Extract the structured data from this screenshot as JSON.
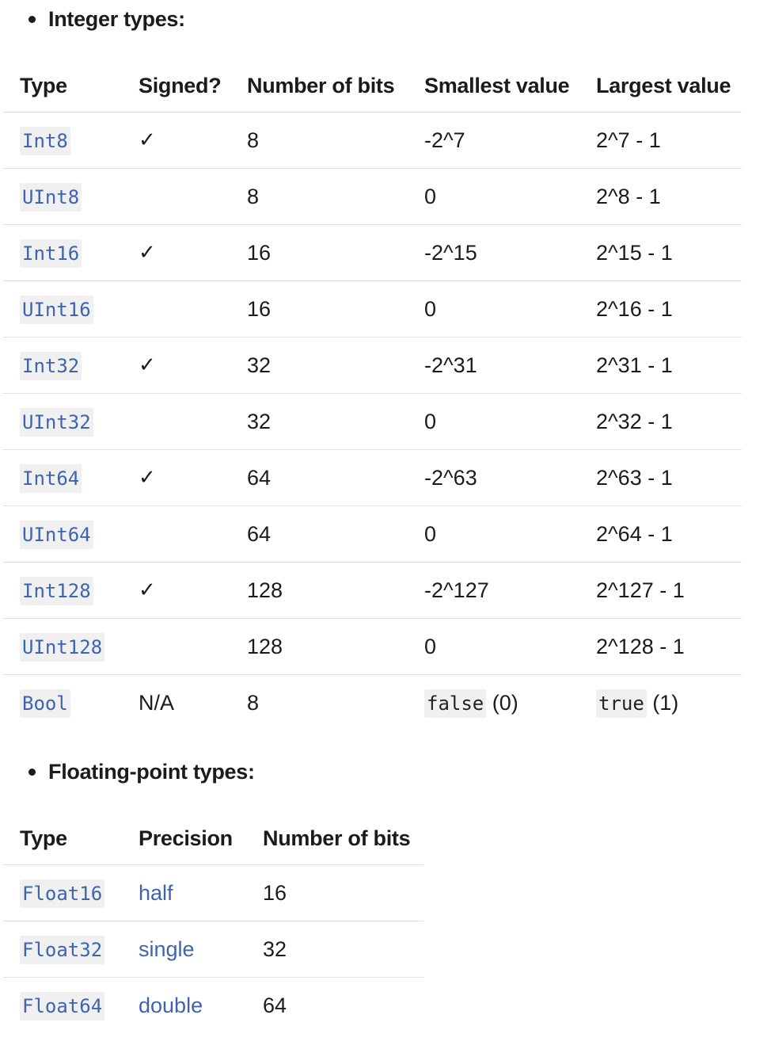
{
  "integer_section": {
    "heading": "Integer types:",
    "headers": [
      "Type",
      "Signed?",
      "Number of bits",
      "Smallest value",
      "Largest value"
    ],
    "rows": [
      {
        "type": "Int8",
        "signed": "✓",
        "bits": "8",
        "smallest": "-2^7",
        "largest": "2^7 - 1"
      },
      {
        "type": "UInt8",
        "signed": "",
        "bits": "8",
        "smallest": "0",
        "largest": "2^8 - 1"
      },
      {
        "type": "Int16",
        "signed": "✓",
        "bits": "16",
        "smallest": "-2^15",
        "largest": "2^15 - 1"
      },
      {
        "type": "UInt16",
        "signed": "",
        "bits": "16",
        "smallest": "0",
        "largest": "2^16 - 1"
      },
      {
        "type": "Int32",
        "signed": "✓",
        "bits": "32",
        "smallest": "-2^31",
        "largest": "2^31 - 1"
      },
      {
        "type": "UInt32",
        "signed": "",
        "bits": "32",
        "smallest": "0",
        "largest": "2^32 - 1"
      },
      {
        "type": "Int64",
        "signed": "✓",
        "bits": "64",
        "smallest": "-2^63",
        "largest": "2^63 - 1"
      },
      {
        "type": "UInt64",
        "signed": "",
        "bits": "64",
        "smallest": "0",
        "largest": "2^64 - 1"
      },
      {
        "type": "Int128",
        "signed": "✓",
        "bits": "128",
        "smallest": "-2^127",
        "largest": "2^127 - 1"
      },
      {
        "type": "UInt128",
        "signed": "",
        "bits": "128",
        "smallest": "0",
        "largest": "2^128 - 1"
      }
    ],
    "bool_row": {
      "type": "Bool",
      "signed": "N/A",
      "bits": "8",
      "smallest_code": "false",
      "smallest_suffix": " (0)",
      "largest_code": "true",
      "largest_suffix": " (1)"
    }
  },
  "float_section": {
    "heading": "Floating-point types:",
    "headers": [
      "Type",
      "Precision",
      "Number of bits"
    ],
    "rows": [
      {
        "type": "Float16",
        "precision": "half",
        "bits": "16"
      },
      {
        "type": "Float32",
        "precision": "single",
        "bits": "32"
      },
      {
        "type": "Float64",
        "precision": "double",
        "bits": "64"
      }
    ]
  },
  "colors": {
    "link": "#3e63b0",
    "code_background": "#f0f0f0",
    "row_divider": "#e0e0e0"
  }
}
